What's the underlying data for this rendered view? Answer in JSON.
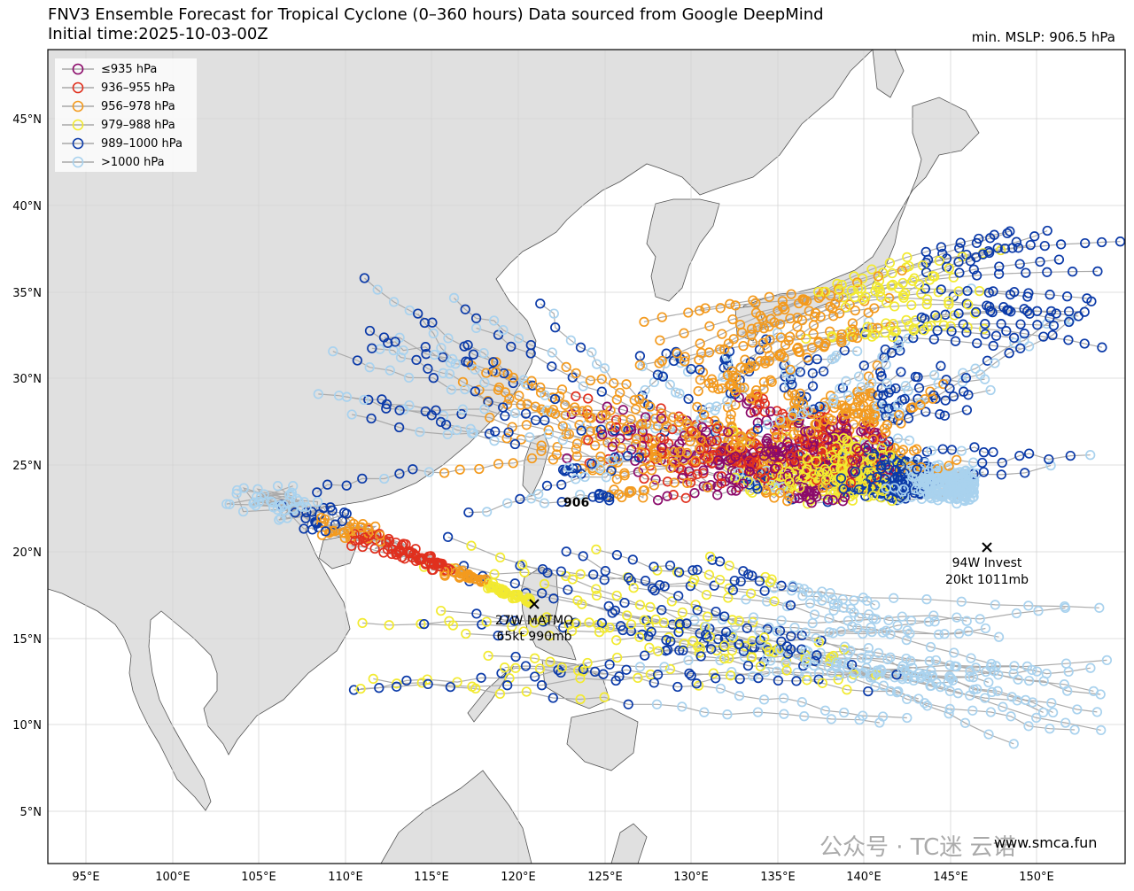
{
  "header": {
    "title": "FNV3 Ensemble Forecast for Tropical Cyclone (0–360 hours) Data sourced from Google DeepMind",
    "initial_time": "Initial time:2025-10-03-00Z",
    "min_mslp": "min. MSLP: 906.5 hPa"
  },
  "legend": {
    "items": [
      {
        "label": "≤935 hPa",
        "color": "#8b0a6a"
      },
      {
        "label": "936–955 hPa",
        "color": "#e0301e"
      },
      {
        "label": "956–978 hPa",
        "color": "#f39a1e"
      },
      {
        "label": "979–988 hPa",
        "color": "#f2ea30"
      },
      {
        "label": "989–1000 hPa",
        "color": "#0b3aa8"
      },
      {
        "label": ">1000 hPa",
        "color": "#a9d2ee"
      }
    ]
  },
  "axes": {
    "lon_labels": [
      "95°E",
      "100°E",
      "105°E",
      "110°E",
      "115°E",
      "120°E",
      "125°E",
      "130°E",
      "135°E",
      "140°E",
      "145°E",
      "150°E"
    ],
    "lat_labels": [
      "5°N",
      "10°N",
      "15°N",
      "20°N",
      "25°N",
      "30°N",
      "35°N",
      "40°N",
      "45°N"
    ]
  },
  "annotations": {
    "min_value": "906",
    "matmo_name": "27W MATMO",
    "matmo_info": "65kt 990mb",
    "invest_name": "94W Invest",
    "invest_info": "20kt 1011mb"
  },
  "watermark": {
    "url": "www.smca.fun",
    "overlay": "公众号 · TC迷 云诺"
  },
  "chart_data": {
    "type": "scatter",
    "title": "FNV3 Ensemble Forecast for Tropical Cyclone (0–360 hours) Data sourced from Google DeepMind",
    "xlim": [
      92.8,
      155
    ],
    "ylim": [
      2,
      49
    ],
    "grid": true,
    "legend_position": "top-left",
    "min_point": {
      "value": "906",
      "lon": 122.5,
      "lat": 22.8
    },
    "storms": [
      {
        "name": "27W MATMO",
        "lon": 120.8,
        "lat": 17.0
      },
      {
        "name": "94W Invest",
        "lon": 147.1,
        "lat": 20.3
      }
    ]
  }
}
